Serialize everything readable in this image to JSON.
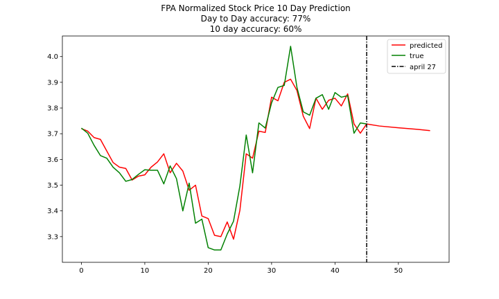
{
  "chart_data": {
    "type": "line",
    "title_lines": [
      "FPA Normalized Stock Price 10 Day Prediction",
      "Day to Day accuracy: 77%",
      "10 day accuracy: 60%"
    ],
    "xlabel": "",
    "ylabel": "",
    "xlim": [
      -3,
      58
    ],
    "ylim": [
      3.2,
      4.08
    ],
    "xticks": [
      0,
      10,
      20,
      30,
      40,
      50
    ],
    "yticks": [
      3.3,
      3.4,
      3.5,
      3.6,
      3.7,
      3.8,
      3.9,
      4.0
    ],
    "grid": false,
    "legend_position": "top-right",
    "series": [
      {
        "name": "predicted",
        "color": "#ff0000",
        "style": "solid",
        "x": [
          0,
          1,
          2,
          3,
          4,
          5,
          6,
          7,
          8,
          9,
          10,
          11,
          12,
          13,
          14,
          15,
          16,
          17,
          18,
          19,
          20,
          21,
          22,
          23,
          24,
          25,
          26,
          27,
          28,
          29,
          30,
          31,
          32,
          33,
          34,
          35,
          36,
          37,
          38,
          39,
          40,
          41,
          42,
          43,
          44,
          45,
          47,
          50,
          53,
          55
        ],
        "y": [
          3.72,
          3.71,
          3.685,
          3.678,
          3.633,
          3.588,
          3.57,
          3.565,
          3.52,
          3.535,
          3.54,
          3.57,
          3.59,
          3.622,
          3.548,
          3.585,
          3.555,
          3.48,
          3.5,
          3.38,
          3.37,
          3.305,
          3.3,
          3.357,
          3.29,
          3.402,
          3.622,
          3.605,
          3.71,
          3.705,
          3.842,
          3.828,
          3.9,
          3.912,
          3.868,
          3.768,
          3.72,
          3.838,
          3.795,
          3.83,
          3.838,
          3.808,
          3.855,
          3.738,
          3.702,
          3.738,
          3.73,
          3.723,
          3.717,
          3.712
        ]
      },
      {
        "name": "true",
        "color": "#008000",
        "style": "solid",
        "x": [
          0,
          1,
          2,
          3,
          4,
          5,
          6,
          7,
          8,
          9,
          10,
          11,
          12,
          13,
          14,
          15,
          16,
          17,
          18,
          19,
          20,
          21,
          22,
          23,
          24,
          25,
          26,
          27,
          28,
          29,
          30,
          31,
          32,
          33,
          34,
          35,
          36,
          37,
          38,
          39,
          40,
          41,
          42,
          43,
          44,
          45
        ],
        "y": [
          3.722,
          3.702,
          3.655,
          3.615,
          3.605,
          3.57,
          3.548,
          3.515,
          3.522,
          3.542,
          3.56,
          3.558,
          3.558,
          3.505,
          3.575,
          3.525,
          3.4,
          3.508,
          3.352,
          3.368,
          3.257,
          3.248,
          3.248,
          3.31,
          3.36,
          3.497,
          3.695,
          3.548,
          3.742,
          3.722,
          3.82,
          3.88,
          3.888,
          4.04,
          3.88,
          3.785,
          3.772,
          3.838,
          3.852,
          3.795,
          3.86,
          3.842,
          3.848,
          3.702,
          3.742,
          3.738
        ]
      }
    ],
    "vline": {
      "name": "april 27",
      "x": 45,
      "color": "#000000",
      "style": "dashdot"
    }
  }
}
